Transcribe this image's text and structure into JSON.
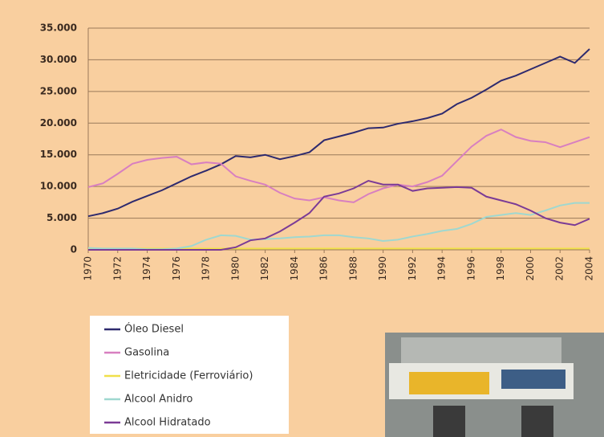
{
  "chart_data": {
    "type": "line",
    "x": [
      1970,
      1971,
      1972,
      1973,
      1974,
      1975,
      1976,
      1977,
      1978,
      1979,
      1980,
      1981,
      1982,
      1983,
      1984,
      1985,
      1986,
      1987,
      1988,
      1989,
      1990,
      1991,
      1992,
      1993,
      1994,
      1995,
      1996,
      1997,
      1998,
      1999,
      2000,
      2001,
      2002,
      2003,
      2004
    ],
    "xlim": [
      1970,
      2004
    ],
    "xticks": [
      1970,
      1972,
      1974,
      1976,
      1978,
      1980,
      1982,
      1984,
      1986,
      1988,
      1990,
      1992,
      1994,
      1996,
      1998,
      2000,
      2002,
      2004
    ],
    "ylim": [
      0,
      35000
    ],
    "yticks": [
      0,
      {
        "value": 5000,
        "label": "5.000"
      },
      {
        "value": 10000,
        "label": "10.000"
      },
      {
        "value": 15000,
        "label": "15.000"
      },
      {
        "value": 20000,
        "label": "20.000"
      },
      {
        "value": 25000,
        "label": "25.000"
      },
      {
        "value": 30000,
        "label": "30.000"
      },
      {
        "value": 35000,
        "label": "35.000"
      }
    ],
    "grid": true,
    "series": [
      {
        "name": "Óleo Diesel",
        "color": "#2e2a6e",
        "values": [
          5300,
          5800,
          6500,
          7600,
          8500,
          9400,
          10500,
          11600,
          12500,
          13500,
          14800,
          14600,
          15000,
          14300,
          14800,
          15400,
          17300,
          17900,
          18500,
          19200,
          19300,
          19900,
          20300,
          20800,
          21500,
          23000,
          24000,
          25300,
          26700,
          27500,
          28500,
          29500,
          30500,
          29500,
          31700
        ]
      },
      {
        "name": "Gasolina",
        "color": "#d87fc0",
        "values": [
          9900,
          10500,
          12000,
          13600,
          14200,
          14500,
          14700,
          13500,
          13800,
          13600,
          11600,
          10900,
          10300,
          9000,
          8100,
          7800,
          8300,
          7800,
          7500,
          8800,
          9700,
          10300,
          10000,
          10700,
          11700,
          14000,
          16300,
          18000,
          19000,
          17800,
          17200,
          17000,
          16200,
          17000,
          17800
        ]
      },
      {
        "name": "Eletricidade (Ferroviário)",
        "color": "#f0e04a",
        "values": [
          200,
          200,
          200,
          200,
          200,
          200,
          200,
          200,
          200,
          200,
          200,
          200,
          200,
          200,
          200,
          200,
          200,
          200,
          200,
          200,
          200,
          200,
          200,
          200,
          200,
          200,
          200,
          200,
          200,
          200,
          200,
          200,
          200,
          200,
          200
        ]
      },
      {
        "name": "Alcool Anidro",
        "color": "#9fd8d0",
        "values": [
          300,
          200,
          200,
          200,
          100,
          100,
          200,
          600,
          1600,
          2300,
          2200,
          1600,
          1700,
          1800,
          2000,
          2100,
          2300,
          2300,
          2000,
          1800,
          1400,
          1600,
          2100,
          2500,
          3000,
          3300,
          4100,
          5200,
          5500,
          5800,
          5500,
          6200,
          7000,
          7400,
          7400
        ]
      },
      {
        "name": "Alcool Hidratado",
        "color": "#7b3b96",
        "values": [
          0,
          0,
          0,
          0,
          0,
          0,
          0,
          0,
          0,
          0,
          400,
          1500,
          1800,
          2900,
          4300,
          5800,
          8400,
          8900,
          9700,
          10900,
          10300,
          10300,
          9300,
          9700,
          9800,
          9900,
          9800,
          8400,
          7800,
          7200,
          6200,
          5000,
          4300,
          3900,
          4900
        ]
      }
    ]
  }
}
